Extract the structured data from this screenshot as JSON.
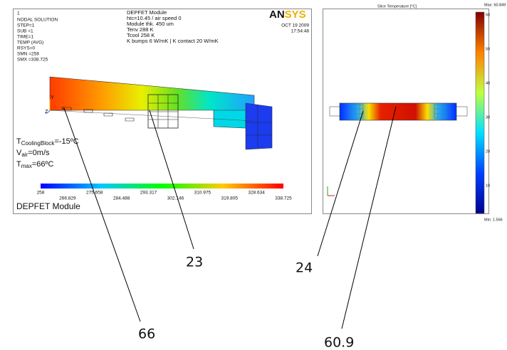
{
  "left_panel": {
    "corner_number": "1",
    "info": [
      "NODAL SOLUTION",
      "STEP=1",
      "SUB =1",
      "TIME=1",
      "TEMP    (AVG)",
      "RSYS=0",
      "SMN =258",
      "SMX =338.725"
    ],
    "header": [
      "DEPFET Module",
      "htc=10.45 / air speed 0",
      "Module thk. 450 um",
      "Tenv 288 K",
      "Tcool 258 K",
      "K bumps 6  W/mK | K contact 20 W/mK"
    ],
    "logo": {
      "part1": "AN",
      "part2": "SYS"
    },
    "date": "OCT 19 2009",
    "time": "17:54:48",
    "annotations": [
      {
        "symbol": "T",
        "subscript": "CoolingBlock",
        "text": "=-15ºC"
      },
      {
        "symbol": "V",
        "subscript": "air",
        "text": "=0m/s"
      },
      {
        "symbol": "T",
        "subscript": "max",
        "text": "=66ºC"
      }
    ],
    "axis_letters": {
      "y": "Y",
      "z": "Z",
      "x": "X"
    },
    "colorbar_labels": [
      "258",
      "266.829",
      "275.658",
      "284.488",
      "293.317",
      "302.146",
      "310.975",
      "319.805",
      "328.634",
      "338.725"
    ],
    "footer": "DEPFET Module"
  },
  "right_panel": {
    "title": "Slice Temperature [°C]",
    "max_label": "Max: 60.849",
    "min_label": "Min: 1.566",
    "colorbar_ticks": [
      "60",
      "50",
      "40",
      "30",
      "20",
      "10"
    ]
  },
  "callouts": [
    "23",
    "66",
    "24",
    "60.9"
  ]
}
